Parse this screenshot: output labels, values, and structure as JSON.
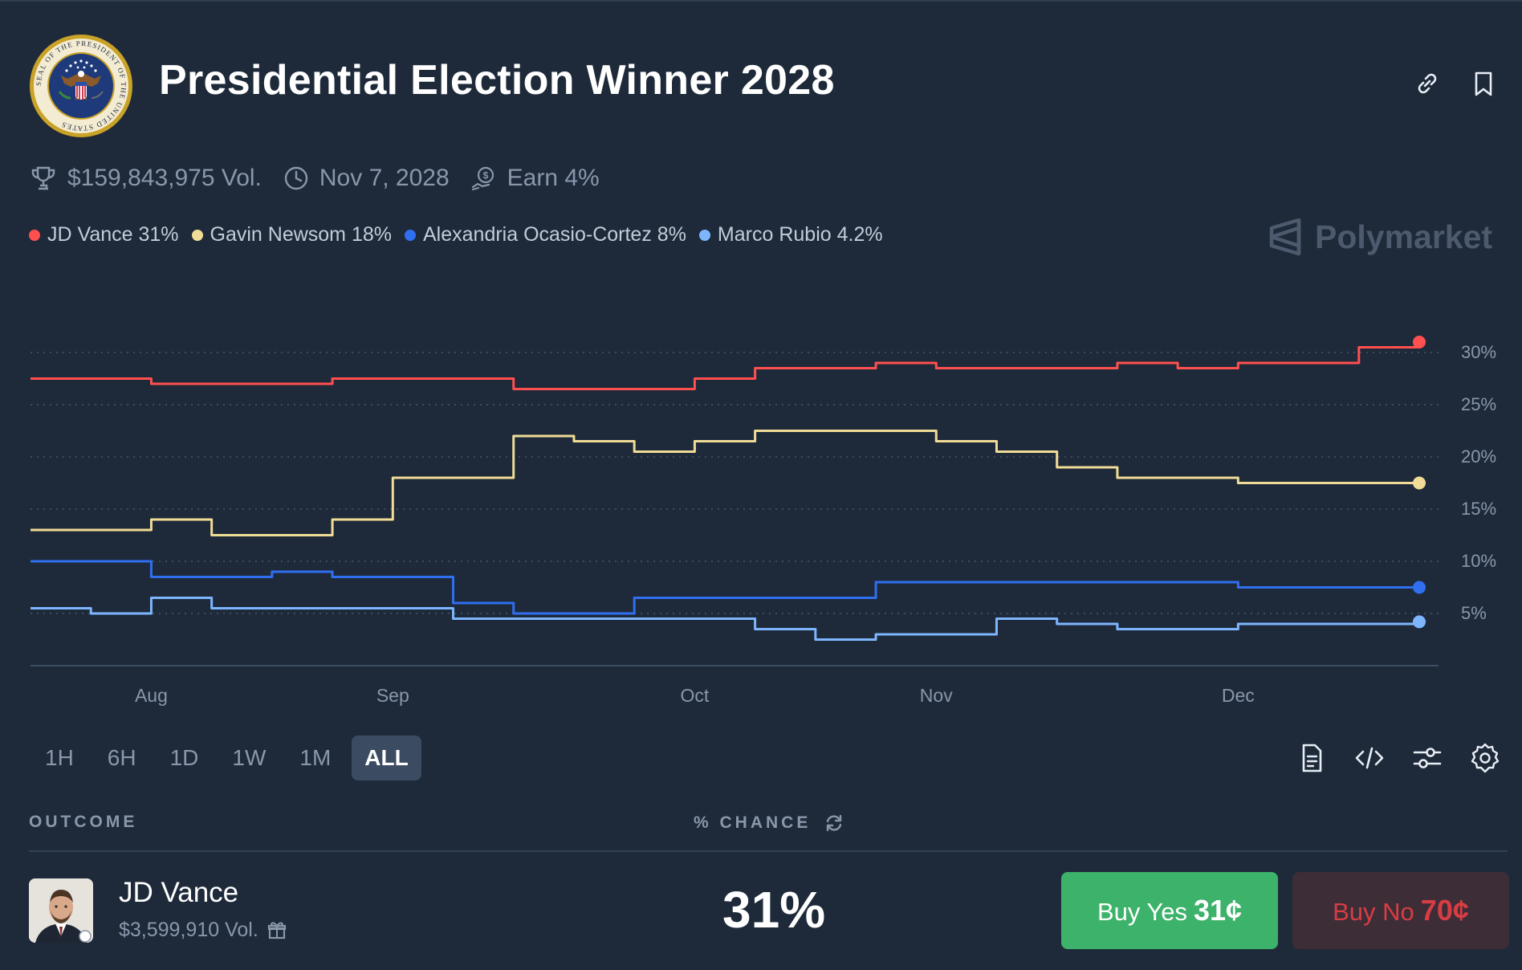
{
  "header": {
    "title": "Presidential Election Winner 2028",
    "seal_text": "SEAL OF THE PRESIDENT OF THE UNITED STATES"
  },
  "meta": {
    "volume": "$159,843,975 Vol.",
    "end_date": "Nov 7, 2028",
    "earn": "Earn 4%"
  },
  "legend": [
    {
      "label": "JD Vance 31%",
      "color": "#ff4f4f"
    },
    {
      "label": "Gavin Newsom 18%",
      "color": "#f0dc96"
    },
    {
      "label": "Alexandria Ocasio-Cortez 8%",
      "color": "#2f6ff0"
    },
    {
      "label": "Marco Rubio 4.2%",
      "color": "#7db6ff"
    }
  ],
  "watermark": "Polymarket",
  "chart_data": {
    "type": "line",
    "x_ticks": [
      "Aug",
      "Sep",
      "Oct",
      "Nov",
      "Dec"
    ],
    "y_ticks": [
      "30%",
      "25%",
      "20%",
      "15%",
      "10%",
      "5%"
    ],
    "y_tick_values": [
      30,
      25,
      20,
      15,
      10,
      5
    ],
    "ylim": [
      0,
      33
    ],
    "x": [
      "Jul 21",
      "Jul 28",
      "Aug 4",
      "Aug 11",
      "Aug 18",
      "Aug 25",
      "Sep 1",
      "Sep 8",
      "Sep 15",
      "Sep 22",
      "Sep 29",
      "Oct 6",
      "Oct 13",
      "Oct 20",
      "Oct 27",
      "Nov 3",
      "Nov 10",
      "Nov 17",
      "Nov 24",
      "Dec 1",
      "Dec 8",
      "Dec 15",
      "Dec 22",
      "Dec 29"
    ],
    "grid": "horizontal dotted",
    "series": [
      {
        "name": "JD Vance",
        "color": "#ff4f4f",
        "values": [
          27.5,
          27.5,
          27,
          27,
          27,
          27.5,
          27.5,
          27.5,
          26.5,
          26.5,
          26.5,
          27.5,
          28.5,
          28.5,
          29,
          28.5,
          28.5,
          28.5,
          29,
          28.5,
          29,
          29,
          30.5,
          31
        ]
      },
      {
        "name": "Gavin Newsom",
        "color": "#f0dc96",
        "values": [
          13,
          13,
          14,
          12.5,
          12.5,
          14,
          18,
          18,
          22,
          21.5,
          20.5,
          21.5,
          22.5,
          22.5,
          22.5,
          21.5,
          20.5,
          19,
          18,
          18,
          17.5,
          17.5,
          17.5,
          17.5
        ]
      },
      {
        "name": "Alexandria Ocasio-Cortez",
        "color": "#2f6ff0",
        "values": [
          10,
          10,
          8.5,
          8.5,
          9,
          8.5,
          8.5,
          6,
          5,
          5,
          6.5,
          6.5,
          6.5,
          6.5,
          8,
          8,
          8,
          8,
          8,
          8,
          7.5,
          7.5,
          7.5,
          7.5
        ]
      },
      {
        "name": "Marco Rubio",
        "color": "#7db6ff",
        "values": [
          5.5,
          5,
          6.5,
          5.5,
          5.5,
          5.5,
          5.5,
          4.5,
          4.5,
          4.5,
          4.5,
          4.5,
          3.5,
          2.5,
          3,
          3,
          4.5,
          4,
          3.5,
          3.5,
          4,
          4,
          4,
          4.2
        ]
      }
    ]
  },
  "ranges": [
    "1H",
    "6H",
    "1D",
    "1W",
    "1M",
    "ALL"
  ],
  "active_range": "ALL",
  "table": {
    "outcome_header": "OUTCOME",
    "chance_header": "% CHANCE"
  },
  "outcome": {
    "name": "JD Vance",
    "volume": "$3,599,910 Vol.",
    "chance": "31%",
    "buy_yes_label": "Buy Yes",
    "buy_yes_price": "31¢",
    "buy_no_label": "Buy No",
    "buy_no_price": "70¢"
  }
}
